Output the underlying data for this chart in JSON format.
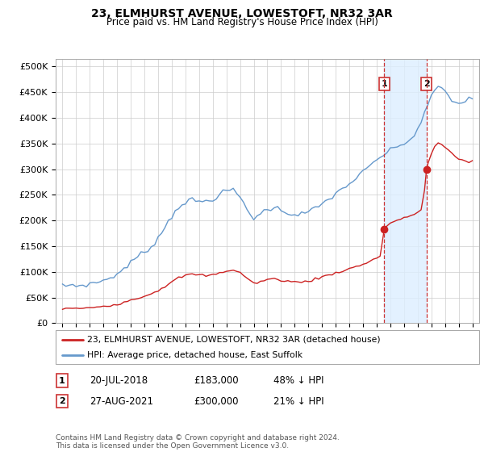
{
  "title": "23, ELMHURST AVENUE, LOWESTOFT, NR32 3AR",
  "subtitle": "Price paid vs. HM Land Registry's House Price Index (HPI)",
  "hpi_x": [
    1995.0,
    1995.25,
    1995.5,
    1995.75,
    1996.0,
    1996.25,
    1996.5,
    1996.75,
    1997.0,
    1997.25,
    1997.5,
    1997.75,
    1998.0,
    1998.25,
    1998.5,
    1998.75,
    1999.0,
    1999.25,
    1999.5,
    1999.75,
    2000.0,
    2000.25,
    2000.5,
    2000.75,
    2001.0,
    2001.25,
    2001.5,
    2001.75,
    2002.0,
    2002.25,
    2002.5,
    2002.75,
    2003.0,
    2003.25,
    2003.5,
    2003.75,
    2004.0,
    2004.25,
    2004.5,
    2004.75,
    2005.0,
    2005.25,
    2005.5,
    2005.75,
    2006.0,
    2006.25,
    2006.5,
    2006.75,
    2007.0,
    2007.25,
    2007.5,
    2007.75,
    2008.0,
    2008.25,
    2008.5,
    2008.75,
    2009.0,
    2009.25,
    2009.5,
    2009.75,
    2010.0,
    2010.25,
    2010.5,
    2010.75,
    2011.0,
    2011.25,
    2011.5,
    2011.75,
    2012.0,
    2012.25,
    2012.5,
    2012.75,
    2013.0,
    2013.25,
    2013.5,
    2013.75,
    2014.0,
    2014.25,
    2014.5,
    2014.75,
    2015.0,
    2015.25,
    2015.5,
    2015.75,
    2016.0,
    2016.25,
    2016.5,
    2016.75,
    2017.0,
    2017.25,
    2017.5,
    2017.75,
    2018.0,
    2018.25,
    2018.5,
    2018.75,
    2019.0,
    2019.25,
    2019.5,
    2019.75,
    2020.0,
    2020.25,
    2020.5,
    2020.75,
    2021.0,
    2021.25,
    2021.5,
    2021.75,
    2022.0,
    2022.25,
    2022.5,
    2022.75,
    2023.0,
    2023.25,
    2023.5,
    2023.75,
    2024.0,
    2024.25,
    2024.5,
    2024.75,
    2025.0
  ],
  "hpi_y": [
    72000,
    73000,
    74000,
    74500,
    73000,
    73500,
    74000,
    75000,
    76000,
    78000,
    80000,
    81000,
    83000,
    86000,
    89000,
    92000,
    95000,
    100000,
    107000,
    112000,
    118000,
    124000,
    130000,
    134000,
    138000,
    143000,
    150000,
    158000,
    166000,
    176000,
    188000,
    198000,
    208000,
    218000,
    228000,
    232000,
    235000,
    238000,
    240000,
    238000,
    236000,
    237000,
    238000,
    240000,
    242000,
    246000,
    250000,
    254000,
    258000,
    260000,
    258000,
    252000,
    245000,
    235000,
    222000,
    212000,
    205000,
    208000,
    213000,
    218000,
    222000,
    224000,
    225000,
    223000,
    220000,
    218000,
    215000,
    213000,
    212000,
    212000,
    213000,
    215000,
    217000,
    220000,
    223000,
    227000,
    232000,
    237000,
    242000,
    247000,
    252000,
    257000,
    262000,
    267000,
    272000,
    277000,
    282000,
    288000,
    294000,
    300000,
    306000,
    312000,
    318000,
    323000,
    328000,
    332000,
    336000,
    340000,
    344000,
    348000,
    350000,
    352000,
    358000,
    368000,
    378000,
    392000,
    408000,
    425000,
    440000,
    455000,
    462000,
    458000,
    450000,
    442000,
    435000,
    430000,
    428000,
    430000,
    433000,
    436000,
    438000
  ],
  "prop_x": [
    1995.0,
    1995.25,
    1995.5,
    1995.75,
    1996.0,
    1996.25,
    1996.5,
    1996.75,
    1997.0,
    1997.25,
    1997.5,
    1997.75,
    1998.0,
    1998.25,
    1998.5,
    1998.75,
    1999.0,
    1999.25,
    1999.5,
    1999.75,
    2000.0,
    2000.25,
    2000.5,
    2000.75,
    2001.0,
    2001.25,
    2001.5,
    2001.75,
    2002.0,
    2002.25,
    2002.5,
    2002.75,
    2003.0,
    2003.25,
    2003.5,
    2003.75,
    2004.0,
    2004.25,
    2004.5,
    2004.75,
    2005.0,
    2005.25,
    2005.5,
    2005.75,
    2006.0,
    2006.25,
    2006.5,
    2006.75,
    2007.0,
    2007.25,
    2007.5,
    2007.75,
    2008.0,
    2008.25,
    2008.5,
    2008.75,
    2009.0,
    2009.25,
    2009.5,
    2009.75,
    2010.0,
    2010.25,
    2010.5,
    2010.75,
    2011.0,
    2011.25,
    2011.5,
    2011.75,
    2012.0,
    2012.25,
    2012.5,
    2012.75,
    2013.0,
    2013.25,
    2013.5,
    2013.75,
    2014.0,
    2014.25,
    2014.5,
    2014.75,
    2015.0,
    2015.25,
    2015.5,
    2015.75,
    2016.0,
    2016.25,
    2016.5,
    2016.75,
    2017.0,
    2017.25,
    2017.5,
    2017.75,
    2018.0,
    2018.25,
    2018.55,
    2018.75,
    2019.0,
    2019.25,
    2019.5,
    2019.75,
    2020.0,
    2020.25,
    2020.5,
    2020.75,
    2021.0,
    2021.25,
    2021.5,
    2021.65,
    2021.75,
    2022.0,
    2022.25,
    2022.5,
    2022.75,
    2023.0,
    2023.25,
    2023.5,
    2023.75,
    2024.0,
    2024.25,
    2024.5,
    2024.75,
    2025.0
  ],
  "prop_y": [
    28000,
    28500,
    29000,
    29000,
    28500,
    28000,
    28500,
    29000,
    30000,
    31000,
    32000,
    32500,
    33000,
    34000,
    35000,
    36000,
    37000,
    39000,
    41000,
    43000,
    45000,
    47000,
    49000,
    51000,
    53000,
    55000,
    58000,
    61000,
    64000,
    68000,
    72000,
    76000,
    80000,
    84000,
    88000,
    91000,
    93000,
    94000,
    95000,
    95000,
    94000,
    93000,
    93000,
    93000,
    94000,
    96000,
    98000,
    100000,
    102000,
    103000,
    103000,
    101000,
    98000,
    94000,
    88000,
    82000,
    78000,
    79000,
    81000,
    83000,
    85000,
    86000,
    86000,
    85000,
    84000,
    83000,
    82000,
    81000,
    80000,
    80000,
    80000,
    81000,
    82000,
    84000,
    86000,
    88000,
    90000,
    92000,
    94000,
    96000,
    98000,
    100000,
    102000,
    104000,
    106000,
    108000,
    110000,
    112000,
    115000,
    118000,
    121000,
    124000,
    127000,
    130000,
    183000,
    190000,
    195000,
    198000,
    200000,
    202000,
    204000,
    207000,
    210000,
    213000,
    216000,
    220000,
    260000,
    300000,
    310000,
    330000,
    345000,
    350000,
    348000,
    342000,
    336000,
    330000,
    325000,
    320000,
    318000,
    316000,
    315000,
    315000
  ],
  "sale1_year": 2018.55,
  "sale1_value": 183000,
  "sale2_year": 2021.65,
  "sale2_value": 300000,
  "hpi_color": "#6699cc",
  "property_color": "#cc2222",
  "vline_color": "#cc3333",
  "highlight_bg": "#ddeeff",
  "ylabel_values": [
    0,
    50000,
    100000,
    150000,
    200000,
    250000,
    300000,
    350000,
    400000,
    450000,
    500000
  ],
  "ylabel_labels": [
    "£0",
    "£50K",
    "£100K",
    "£150K",
    "£200K",
    "£250K",
    "£300K",
    "£350K",
    "£400K",
    "£450K",
    "£500K"
  ],
  "ylim": [
    0,
    515000
  ],
  "xlim_min": 1994.5,
  "xlim_max": 2025.5,
  "legend_line1": "23, ELMHURST AVENUE, LOWESTOFT, NR32 3AR (detached house)",
  "legend_line2": "HPI: Average price, detached house, East Suffolk",
  "footnote": "Contains HM Land Registry data © Crown copyright and database right 2024.\nThis data is licensed under the Open Government Licence v3.0.",
  "table_row1": [
    "1",
    "20-JUL-2018",
    "£183,000",
    "48% ↓ HPI"
  ],
  "table_row2": [
    "2",
    "27-AUG-2021",
    "£300,000",
    "21% ↓ HPI"
  ],
  "bg_color": "#f0f0f0"
}
